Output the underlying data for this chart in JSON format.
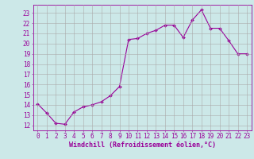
{
  "x": [
    0,
    1,
    2,
    3,
    4,
    5,
    6,
    7,
    8,
    9,
    10,
    11,
    12,
    13,
    14,
    15,
    16,
    17,
    18,
    19,
    20,
    21,
    22,
    23
  ],
  "y": [
    14.1,
    13.2,
    12.2,
    12.1,
    13.3,
    13.8,
    14.0,
    14.3,
    14.9,
    15.8,
    20.4,
    20.5,
    21.0,
    21.3,
    21.8,
    21.8,
    20.6,
    22.3,
    23.3,
    21.5,
    21.5,
    20.3,
    19.0,
    19.0
  ],
  "line_color": "#990099",
  "marker": "D",
  "marker_size": 2,
  "bg_color": "#cce8e8",
  "grid_color": "#aaaaaa",
  "xlabel": "Windchill (Refroidissement éolien,°C)",
  "ylabel_ticks": [
    12,
    13,
    14,
    15,
    16,
    17,
    18,
    19,
    20,
    21,
    22,
    23
  ],
  "xlim": [
    -0.5,
    23.5
  ],
  "ylim": [
    11.5,
    23.8
  ],
  "xticks": [
    0,
    1,
    2,
    3,
    4,
    5,
    6,
    7,
    8,
    9,
    10,
    11,
    12,
    13,
    14,
    15,
    16,
    17,
    18,
    19,
    20,
    21,
    22,
    23
  ],
  "axis_color": "#990099",
  "tick_fontsize": 5.5,
  "xlabel_fontsize": 6.0,
  "linewidth": 0.8
}
